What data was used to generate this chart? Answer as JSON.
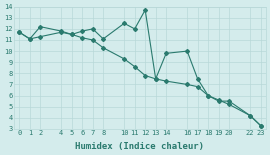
{
  "x": [
    0,
    1,
    2,
    4,
    5,
    6,
    7,
    8,
    10,
    11,
    12,
    13,
    14,
    16,
    17,
    18,
    19,
    20,
    22,
    23
  ],
  "line1_y": [
    11.7,
    11.1,
    12.2,
    11.8,
    11.5,
    11.8,
    12.0,
    11.1,
    12.5,
    12.0,
    13.7,
    7.5,
    9.8,
    10.0,
    7.5,
    6.0,
    5.5,
    5.5,
    4.2,
    3.3
  ],
  "line2_y": [
    11.7,
    11.1,
    11.3,
    11.7,
    11.5,
    11.2,
    11.0,
    10.3,
    9.3,
    8.6,
    7.8,
    7.5,
    7.3,
    7.0,
    6.8,
    6.0,
    5.6,
    5.2,
    4.2,
    3.3
  ],
  "color": "#2a7a6e",
  "bg_color": "#d4ecec",
  "grid_color": "#b8d8d8",
  "xlabel": "Humidex (Indice chaleur)",
  "xlim": [
    -0.5,
    23.5
  ],
  "ylim": [
    3,
    14
  ],
  "yticks": [
    3,
    4,
    5,
    6,
    7,
    8,
    9,
    10,
    11,
    12,
    13,
    14
  ],
  "xticks": [
    0,
    1,
    2,
    4,
    5,
    6,
    7,
    8,
    10,
    11,
    12,
    13,
    14,
    16,
    17,
    18,
    19,
    20,
    22,
    23
  ],
  "marker_size": 2,
  "linewidth": 0.8,
  "tick_fontsize": 5,
  "xlabel_fontsize": 6.5
}
